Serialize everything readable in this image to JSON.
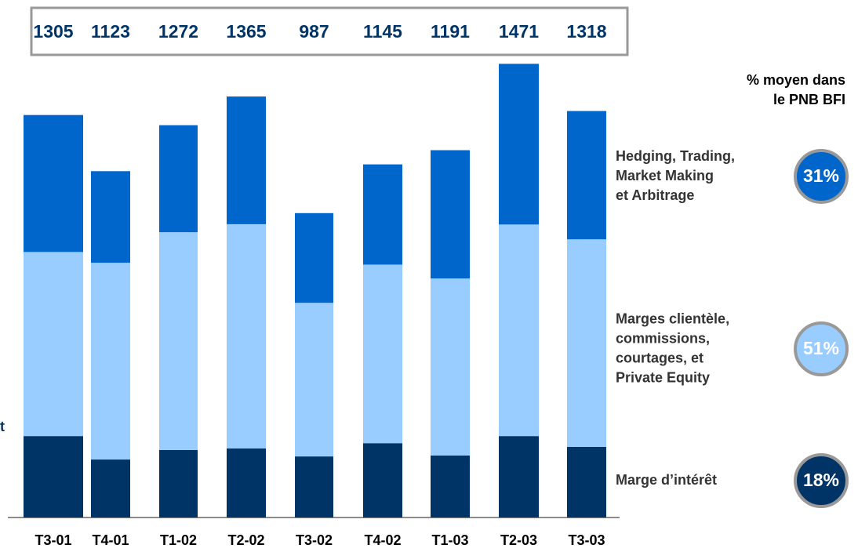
{
  "chart_data": {
    "type": "bar",
    "stacked": true,
    "categories": [
      "T3-01",
      "T4-01",
      "T1-02",
      "T2-02",
      "T3-02",
      "T4-02",
      "T1-03",
      "T2-03",
      "T3-03"
    ],
    "totals": [
      1305,
      1123,
      1272,
      1365,
      987,
      1145,
      1191,
      1471,
      1318
    ],
    "ylim": [
      0,
      1500
    ],
    "series": [
      {
        "name": [
          "Marge d’intérêt"
        ],
        "color": "#003366",
        "share": 18,
        "share_label": "18%",
        "values": [
          264,
          188,
          219,
          224,
          198,
          241,
          201,
          264,
          229
        ]
      },
      {
        "name": [
          "Marges clientèle,",
          "commissions,",
          "courtages, et",
          "Private Equity"
        ],
        "color": "#99ccff",
        "share": 51,
        "share_label": "51%",
        "values": [
          597,
          638,
          706,
          727,
          498,
          579,
          574,
          686,
          673
        ]
      },
      {
        "name": [
          "Hedging, Trading,",
          "Market Making",
          "et Arbitrage"
        ],
        "color": "#0066cc",
        "share": 31,
        "share_label": "31%",
        "values": [
          444,
          297,
          347,
          414,
          291,
          325,
          416,
          521,
          416
        ]
      }
    ],
    "legend_title": [
      "% moyen dans",
      "le PNB BFI"
    ],
    "annotation": "t"
  }
}
